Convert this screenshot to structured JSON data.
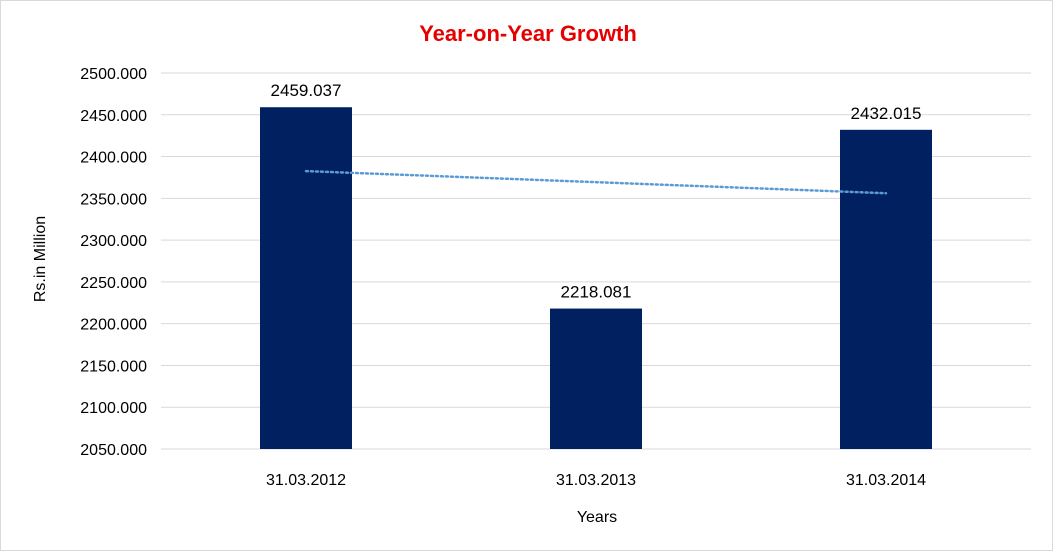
{
  "chart_data": {
    "type": "bar",
    "title": "Year-on-Year Growth",
    "xlabel": "Years",
    "ylabel": "Rs.in Million",
    "categories": [
      "31.03.2012",
      "31.03.2013",
      "31.03.2014"
    ],
    "values": [
      2459.037,
      2218.081,
      2432.015
    ],
    "value_labels": [
      "2459.037",
      "2218.081",
      "2432.015"
    ],
    "ylim": [
      2050,
      2500
    ],
    "y_ticks": [
      {
        "value": 2500,
        "label": "2500.000"
      },
      {
        "value": 2450,
        "label": "2450.000"
      },
      {
        "value": 2400,
        "label": "2400.000"
      },
      {
        "value": 2350,
        "label": "2350.000"
      },
      {
        "value": 2300,
        "label": "2300.000"
      },
      {
        "value": 2250,
        "label": "2250.000"
      },
      {
        "value": 2200,
        "label": "2200.000"
      },
      {
        "value": 2150,
        "label": "2150.000"
      },
      {
        "value": 2100,
        "label": "2100.000"
      },
      {
        "value": 2050,
        "label": "2050.000"
      }
    ],
    "grid": true,
    "legend": "none",
    "trendline": {
      "type": "linear",
      "style": "dotted",
      "start": 2382.6,
      "end": 2356.1
    },
    "colors": {
      "bar": "#002060",
      "title": "#e60000",
      "trendline": "#5b9bd5",
      "grid": "#d9d9d9"
    }
  }
}
